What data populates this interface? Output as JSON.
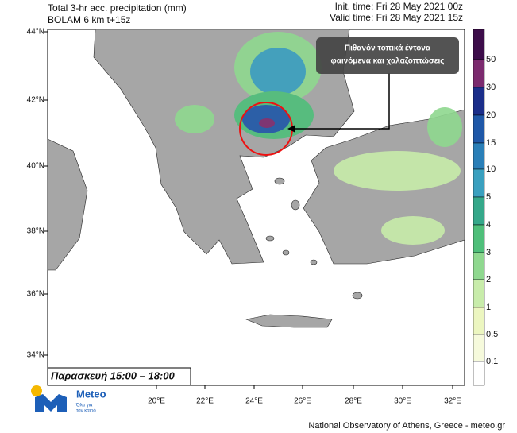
{
  "header": {
    "title": "Total 3-hr acc. precipitation (mm)",
    "subtitle": "BOLAM 6 km t+15z",
    "init_time": "Init. time: Fri 28 May 2021 00z",
    "valid_time": "Valid time: Fri 28 May 2021 15z"
  },
  "map": {
    "lat_labels": [
      "44°N",
      "42°N",
      "40°N",
      "38°N",
      "36°N",
      "34°N"
    ],
    "lon_labels": [
      "20°E",
      "22°E",
      "24°E",
      "26°E",
      "28°E",
      "30°E",
      "32°E"
    ],
    "annotation": [
      "Πιθανόν τοπικά έντονα",
      "φαινόμενα και χαλαζοπτώσεις"
    ],
    "period_label": "Παρασκευή 15:00 – 18:00"
  },
  "colorbar": {
    "labels": [
      "50",
      "30",
      "20",
      "15",
      "10",
      "5",
      "4",
      "3",
      "2",
      "1",
      "0.5",
      "0.1"
    ]
  },
  "logo": {
    "name": "Meteo",
    "tagline": [
      "Όλα για",
      "τον καιρό"
    ]
  },
  "footer": "National Observatory of Athens, Greece - meteo.gr"
}
